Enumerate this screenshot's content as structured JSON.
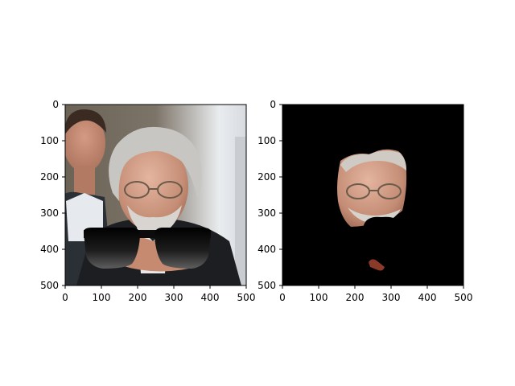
{
  "chart_data": [
    {
      "type": "image",
      "panel": "left",
      "content": "photo",
      "xlim": [
        0,
        500
      ],
      "ylim": [
        500,
        0
      ],
      "x_ticks": [
        0,
        100,
        200,
        300,
        400,
        500
      ],
      "y_ticks": [
        0,
        100,
        200,
        300,
        400,
        500
      ],
      "x_tick_labels": [
        "0",
        "100",
        "200",
        "300",
        "400",
        "500"
      ],
      "y_tick_labels": [
        "0",
        "100",
        "200",
        "300",
        "400",
        "500"
      ],
      "title": "",
      "xlabel": "",
      "ylabel": ""
    },
    {
      "type": "image",
      "panel": "right",
      "content": "face-mask",
      "background_color": "#000000",
      "xlim": [
        0,
        500
      ],
      "ylim": [
        500,
        0
      ],
      "x_ticks": [
        0,
        100,
        200,
        300,
        400,
        500
      ],
      "y_ticks": [
        0,
        100,
        200,
        300,
        400,
        500
      ],
      "x_tick_labels": [
        "0",
        "100",
        "200",
        "300",
        "400",
        "500"
      ],
      "y_tick_labels": [
        "0",
        "100",
        "200",
        "300",
        "400",
        "500"
      ],
      "title": "",
      "xlabel": "",
      "ylabel": ""
    }
  ]
}
